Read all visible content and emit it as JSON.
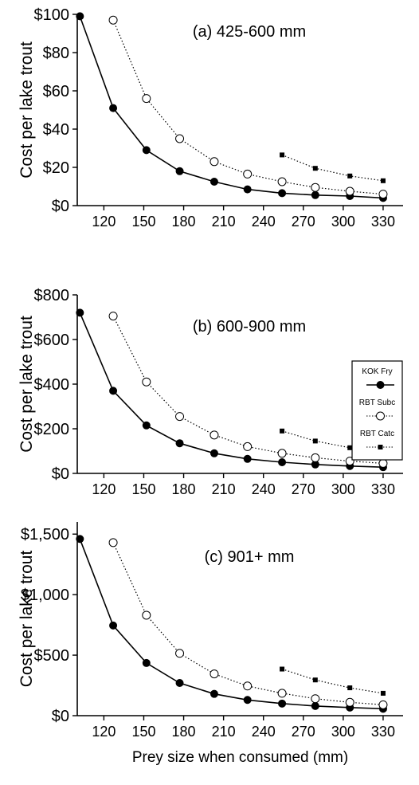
{
  "chart_data": [
    {
      "type": "line",
      "title": "(a) 425-600 mm",
      "ylabel": "Cost per lake trout",
      "xlabel": "",
      "xlim": [
        100,
        345
      ],
      "ylim": [
        0,
        100
      ],
      "xticks": [
        120,
        150,
        180,
        210,
        240,
        270,
        300,
        330
      ],
      "xtick_labels": [
        "120",
        "150",
        "180",
        "210",
        "240",
        "270",
        "300",
        "330"
      ],
      "yticks": [
        0,
        20,
        40,
        60,
        80,
        100
      ],
      "ytick_labels": [
        "$0",
        "$20",
        "$40",
        "$60",
        "$80",
        "$100"
      ],
      "grid": false,
      "legend": null,
      "series": [
        {
          "name": "KOK Fry",
          "style": "solid",
          "marker": "filled-circle",
          "x": [
            102,
            127,
            152,
            177,
            203,
            228,
            254,
            279,
            305,
            330
          ],
          "y": [
            99,
            51,
            29,
            18,
            12.5,
            8.5,
            6.5,
            5.5,
            5,
            4
          ]
        },
        {
          "name": "RBT Subc",
          "style": "dotted",
          "marker": "open-circle",
          "x": [
            127,
            152,
            177,
            203,
            228,
            254,
            279,
            305,
            330
          ],
          "y": [
            97,
            56,
            35,
            23,
            16.5,
            12.5,
            9.5,
            7.5,
            6
          ]
        },
        {
          "name": "RBT Catc",
          "style": "dotted",
          "marker": "filled-square",
          "x": [
            254,
            279,
            305,
            330
          ],
          "y": [
            26.5,
            19.5,
            15.5,
            13
          ]
        }
      ]
    },
    {
      "type": "line",
      "title": "(b) 600-900 mm",
      "ylabel": "Cost per lake trout",
      "xlabel": "",
      "xlim": [
        100,
        345
      ],
      "ylim": [
        0,
        800
      ],
      "xticks": [
        120,
        150,
        180,
        210,
        240,
        270,
        300,
        330
      ],
      "xtick_labels": [
        "120",
        "150",
        "180",
        "210",
        "240",
        "270",
        "300",
        "330"
      ],
      "yticks": [
        0,
        200,
        400,
        600,
        800
      ],
      "ytick_labels": [
        "$0",
        "$200",
        "$400",
        "$600",
        "$800"
      ],
      "grid": false,
      "legend": {
        "position": "right",
        "entries": [
          "KOK Fry",
          "RBT Subc",
          "RBT Catc"
        ]
      },
      "series": [
        {
          "name": "KOK Fry",
          "style": "solid",
          "marker": "filled-circle",
          "x": [
            102,
            127,
            152,
            177,
            203,
            228,
            254,
            279,
            305,
            330
          ],
          "y": [
            720,
            370,
            215,
            135,
            90,
            65,
            50,
            40,
            33,
            28
          ]
        },
        {
          "name": "RBT Subc",
          "style": "dotted",
          "marker": "open-circle",
          "x": [
            127,
            152,
            177,
            203,
            228,
            254,
            279,
            305,
            330
          ],
          "y": [
            705,
            410,
            255,
            172,
            120,
            90,
            70,
            55,
            45
          ]
        },
        {
          "name": "RBT Catc",
          "style": "dotted",
          "marker": "filled-square",
          "x": [
            254,
            279,
            305,
            330
          ],
          "y": [
            190,
            145,
            115,
            95
          ]
        }
      ]
    },
    {
      "type": "line",
      "title": "(c) 901+ mm",
      "ylabel": "Cost per lake trout",
      "xlabel": "Prey size when consumed (mm)",
      "xlim": [
        100,
        345
      ],
      "ylim": [
        0,
        1600
      ],
      "xticks": [
        120,
        150,
        180,
        210,
        240,
        270,
        300,
        330
      ],
      "xtick_labels": [
        "120",
        "150",
        "180",
        "210",
        "240",
        "270",
        "300",
        "330"
      ],
      "yticks": [
        0,
        500,
        1000,
        1500
      ],
      "ytick_labels": [
        "$0",
        "$500",
        "$1,000",
        "$1,500"
      ],
      "grid": false,
      "legend": null,
      "series": [
        {
          "name": "KOK Fry",
          "style": "solid",
          "marker": "filled-circle",
          "x": [
            102,
            127,
            152,
            177,
            203,
            228,
            254,
            279,
            305,
            330
          ],
          "y": [
            1460,
            745,
            435,
            270,
            180,
            130,
            100,
            80,
            67,
            57
          ]
        },
        {
          "name": "RBT Subc",
          "style": "dotted",
          "marker": "open-circle",
          "x": [
            127,
            152,
            177,
            203,
            228,
            254,
            279,
            305,
            330
          ],
          "y": [
            1430,
            830,
            515,
            345,
            245,
            185,
            140,
            110,
            90
          ]
        },
        {
          "name": "RBT Catc",
          "style": "dotted",
          "marker": "filled-square",
          "x": [
            254,
            279,
            305,
            330
          ],
          "y": [
            385,
            295,
            230,
            185
          ]
        }
      ]
    }
  ]
}
